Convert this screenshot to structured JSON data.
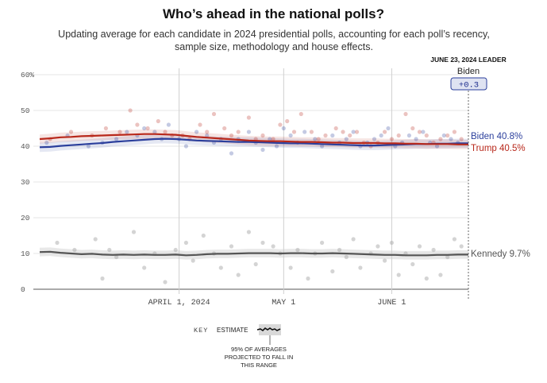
{
  "header": {
    "title": "Who’s ahead in the national polls?",
    "subtitle": "Updating average for each candidate in 2024 presidential polls, accounting for each poll’s recency, sample size, methodology and house effects."
  },
  "leader_box": {
    "date_label": "JUNE 23, 2024 LEADER",
    "name": "Biden",
    "margin": "+0.3"
  },
  "key": {
    "key_word": "KEY",
    "estimate_label": "ESTIMATE",
    "note_lines": [
      "95% OF AVERAGES",
      "PROJECTED TO FALL IN",
      "THIS RANGE"
    ]
  },
  "chart_data": {
    "type": "line",
    "title": "Who’s ahead in the national polls?",
    "ylim": [
      0,
      60
    ],
    "yticks": [
      "0",
      "10",
      "20",
      "30",
      "40",
      "50",
      "60%"
    ],
    "xticks": [
      {
        "label": "APRIL 1, 2024",
        "day": 40
      },
      {
        "label": "MAY 1",
        "day": 70
      },
      {
        "label": "JUNE 1",
        "day": 101
      }
    ],
    "x_range_days": [
      0,
      123
    ],
    "colors": {
      "Biden": "#2b3f9c",
      "Trump": "#b8281b",
      "Kennedy": "#555555"
    },
    "series": [
      {
        "name": "Biden",
        "end_label": "Biden 40.8%",
        "step_days": 3,
        "values": [
          39.7,
          39.8,
          40.1,
          40.3,
          40.5,
          40.7,
          40.9,
          41.2,
          41.4,
          41.6,
          41.8,
          42.0,
          42.1,
          42.0,
          41.8,
          41.6,
          41.5,
          41.4,
          41.3,
          41.2,
          41.2,
          41.1,
          41.0,
          40.9,
          40.8,
          40.8,
          40.7,
          40.6,
          40.5,
          40.4,
          40.3,
          40.2,
          40.2,
          40.3,
          40.4,
          40.5,
          40.6,
          40.6,
          40.7,
          40.7,
          40.8,
          40.8
        ],
        "band": 1.3
      },
      {
        "name": "Trump",
        "end_label": "Trump 40.5%",
        "step_days": 3,
        "values": [
          42.0,
          42.2,
          42.5,
          42.6,
          42.8,
          42.9,
          43.0,
          43.1,
          43.2,
          43.3,
          43.4,
          43.4,
          43.3,
          43.2,
          42.9,
          42.6,
          42.4,
          42.2,
          42.0,
          41.8,
          41.6,
          41.5,
          41.4,
          41.4,
          41.3,
          41.2,
          41.2,
          41.1,
          41.0,
          41.0,
          40.9,
          40.9,
          40.9,
          40.8,
          40.8,
          40.7,
          40.7,
          40.6,
          40.6,
          40.6,
          40.5,
          40.5
        ],
        "band": 1.3
      },
      {
        "name": "Kennedy",
        "end_label": "Kennedy 9.7%",
        "step_days": 3,
        "values": [
          10.4,
          10.5,
          10.2,
          10.0,
          9.8,
          9.9,
          9.7,
          9.6,
          9.7,
          9.6,
          9.7,
          9.6,
          9.6,
          9.7,
          9.5,
          9.6,
          9.8,
          9.9,
          9.9,
          10.0,
          10.1,
          10.1,
          10.1,
          10.0,
          10.1,
          10.1,
          10.0,
          10.0,
          10.1,
          10.0,
          9.9,
          9.8,
          9.7,
          9.6,
          9.6,
          9.5,
          9.5,
          9.5,
          9.6,
          9.6,
          9.7,
          9.7
        ],
        "band": 1.2
      }
    ],
    "poll_points": {
      "Biden": [
        [
          2,
          41
        ],
        [
          8,
          43
        ],
        [
          14,
          40
        ],
        [
          18,
          41
        ],
        [
          22,
          42
        ],
        [
          25,
          44
        ],
        [
          28,
          43
        ],
        [
          30,
          45
        ],
        [
          33,
          44
        ],
        [
          35,
          42
        ],
        [
          37,
          46
        ],
        [
          40,
          42
        ],
        [
          42,
          40
        ],
        [
          45,
          44
        ],
        [
          48,
          43
        ],
        [
          50,
          41
        ],
        [
          52,
          42
        ],
        [
          55,
          38
        ],
        [
          57,
          42
        ],
        [
          60,
          44
        ],
        [
          62,
          41
        ],
        [
          64,
          39
        ],
        [
          66,
          42
        ],
        [
          68,
          40
        ],
        [
          70,
          45
        ],
        [
          72,
          43
        ],
        [
          74,
          41
        ],
        [
          76,
          44
        ],
        [
          79,
          42
        ],
        [
          81,
          40
        ],
        [
          84,
          43
        ],
        [
          86,
          41
        ],
        [
          88,
          42
        ],
        [
          90,
          44
        ],
        [
          92,
          40
        ],
        [
          94,
          41
        ],
        [
          96,
          42
        ],
        [
          98,
          43
        ],
        [
          100,
          45
        ],
        [
          102,
          40
        ],
        [
          104,
          41
        ],
        [
          106,
          43
        ],
        [
          108,
          42
        ],
        [
          110,
          44
        ],
        [
          112,
          41
        ],
        [
          114,
          40
        ],
        [
          116,
          43
        ],
        [
          118,
          42
        ],
        [
          120,
          41
        ]
      ],
      "Trump": [
        [
          3,
          42
        ],
        [
          9,
          44
        ],
        [
          15,
          43
        ],
        [
          19,
          45
        ],
        [
          23,
          44
        ],
        [
          26,
          50
        ],
        [
          28,
          46
        ],
        [
          31,
          45
        ],
        [
          34,
          47
        ],
        [
          36,
          44
        ],
        [
          38,
          43
        ],
        [
          41,
          43
        ],
        [
          43,
          42
        ],
        [
          46,
          46
        ],
        [
          48,
          44
        ],
        [
          50,
          49
        ],
        [
          53,
          45
        ],
        [
          55,
          43
        ],
        [
          57,
          44
        ],
        [
          60,
          48
        ],
        [
          62,
          42
        ],
        [
          64,
          43
        ],
        [
          67,
          42
        ],
        [
          69,
          46
        ],
        [
          71,
          47
        ],
        [
          73,
          44
        ],
        [
          75,
          49
        ],
        [
          78,
          44
        ],
        [
          80,
          42
        ],
        [
          82,
          43
        ],
        [
          85,
          45
        ],
        [
          87,
          44
        ],
        [
          89,
          43
        ],
        [
          91,
          44
        ],
        [
          93,
          41
        ],
        [
          95,
          40
        ],
        [
          97,
          41
        ],
        [
          99,
          44
        ],
        [
          101,
          42
        ],
        [
          103,
          43
        ],
        [
          105,
          49
        ],
        [
          107,
          45
        ],
        [
          109,
          44
        ],
        [
          111,
          43
        ],
        [
          113,
          41
        ],
        [
          115,
          42
        ],
        [
          117,
          43
        ],
        [
          119,
          44
        ],
        [
          121,
          42
        ]
      ],
      "Kennedy": [
        [
          5,
          13
        ],
        [
          10,
          11
        ],
        [
          16,
          14
        ],
        [
          18,
          3
        ],
        [
          20,
          11
        ],
        [
          22,
          9
        ],
        [
          27,
          16
        ],
        [
          30,
          6
        ],
        [
          33,
          10
        ],
        [
          36,
          2
        ],
        [
          39,
          11
        ],
        [
          42,
          13
        ],
        [
          44,
          8
        ],
        [
          47,
          15
        ],
        [
          50,
          10
        ],
        [
          52,
          6
        ],
        [
          55,
          12
        ],
        [
          57,
          4
        ],
        [
          60,
          16
        ],
        [
          62,
          7
        ],
        [
          64,
          13
        ],
        [
          67,
          12
        ],
        [
          69,
          10
        ],
        [
          72,
          6
        ],
        [
          74,
          11
        ],
        [
          77,
          3
        ],
        [
          79,
          10
        ],
        [
          81,
          13
        ],
        [
          84,
          5
        ],
        [
          86,
          11
        ],
        [
          88,
          9
        ],
        [
          90,
          14
        ],
        [
          92,
          6
        ],
        [
          95,
          10
        ],
        [
          97,
          12
        ],
        [
          99,
          8
        ],
        [
          101,
          13
        ],
        [
          103,
          4
        ],
        [
          105,
          10
        ],
        [
          107,
          7
        ],
        [
          109,
          12
        ],
        [
          111,
          3
        ],
        [
          113,
          11
        ],
        [
          115,
          4
        ],
        [
          117,
          9
        ],
        [
          119,
          14
        ],
        [
          121,
          12
        ]
      ]
    },
    "grid": true
  }
}
